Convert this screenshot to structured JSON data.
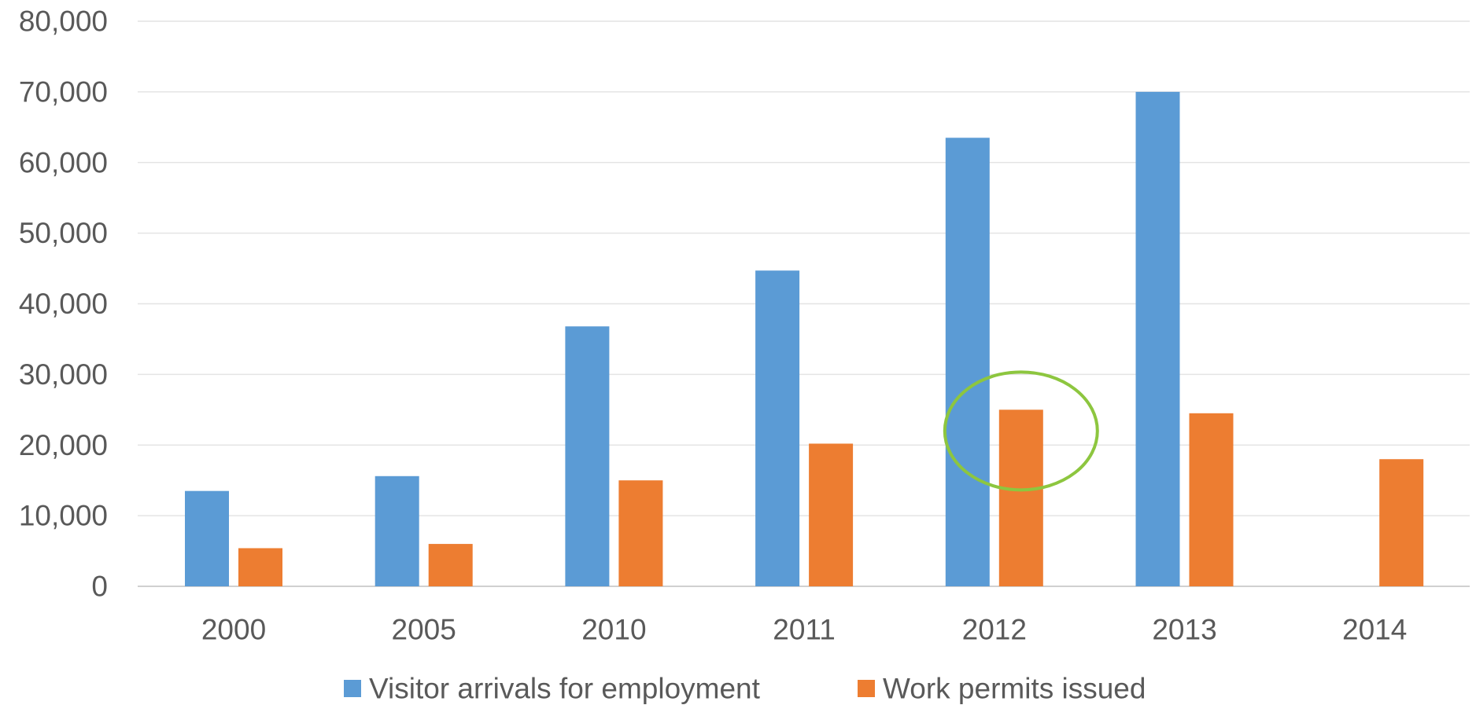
{
  "chart_data": {
    "type": "bar",
    "title": "",
    "xlabel": "",
    "ylabel": "",
    "categories": [
      "2000",
      "2005",
      "2010",
      "2011",
      "2012",
      "2013",
      "2014"
    ],
    "series": [
      {
        "name": "Visitor arrivals for employment",
        "color": "#5B9BD5",
        "values": [
          13500,
          15600,
          36800,
          44700,
          63500,
          70000,
          null
        ]
      },
      {
        "name": "Work permits issued",
        "color": "#ED7D31",
        "values": [
          5400,
          6000,
          15000,
          20200,
          25000,
          24500,
          18000
        ]
      }
    ],
    "ylim": [
      0,
      80000
    ],
    "yticks": [
      "0",
      "10,000",
      "20,000",
      "30,000",
      "40,000",
      "50,000",
      "60,000",
      "70,000",
      "80,000"
    ],
    "grid": true,
    "legend_position": "bottom",
    "annotation": {
      "shape": "ellipse",
      "color": "#8DC63F",
      "target": {
        "category": "2012",
        "series": "Work permits issued"
      }
    }
  }
}
